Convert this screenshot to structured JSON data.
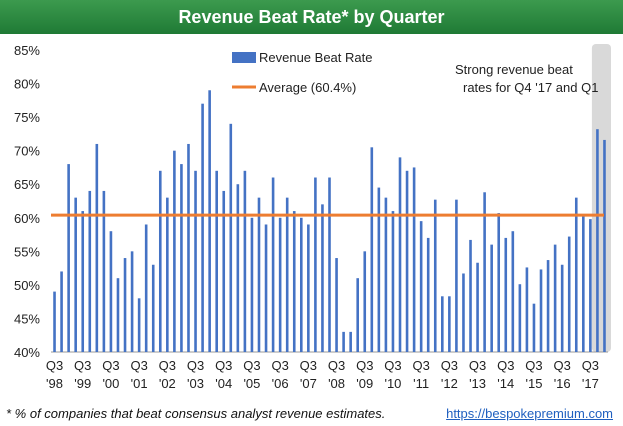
{
  "header": {
    "title": "Revenue Beat Rate* by Quarter"
  },
  "footer": {
    "footnote": "* % of companies that beat consensus analyst revenue estimates.",
    "website": "https://bespokepremium.com"
  },
  "colors": {
    "title_bg": "#2a8a3e",
    "bars": "#4472c4",
    "average_line": "#ed7d31",
    "highlight": "#d9d9d9"
  },
  "chart_data": {
    "type": "bar",
    "y_ticks": [
      "40%",
      "45%",
      "50%",
      "55%",
      "60%",
      "65%",
      "70%",
      "75%",
      "80%",
      "85%"
    ],
    "ylim": [
      40,
      85
    ],
    "grid": false,
    "legend_position": "top-center",
    "x_tick_labels": [
      {
        "q": "Q3",
        "y": "'98"
      },
      {
        "q": "Q3",
        "y": "'99"
      },
      {
        "q": "Q3",
        "y": "'00"
      },
      {
        "q": "Q3",
        "y": "'01"
      },
      {
        "q": "Q3",
        "y": "'02"
      },
      {
        "q": "Q3",
        "y": "'03"
      },
      {
        "q": "Q3",
        "y": "'04"
      },
      {
        "q": "Q3",
        "y": "'05"
      },
      {
        "q": "Q3",
        "y": "'06"
      },
      {
        "q": "Q3",
        "y": "'07"
      },
      {
        "q": "Q3",
        "y": "'08"
      },
      {
        "q": "Q3",
        "y": "'09"
      },
      {
        "q": "Q3",
        "y": "'10"
      },
      {
        "q": "Q3",
        "y": "'11"
      },
      {
        "q": "Q3",
        "y": "'12"
      },
      {
        "q": "Q3",
        "y": "'13"
      },
      {
        "q": "Q3",
        "y": "'14"
      },
      {
        "q": "Q3",
        "y": "'15"
      },
      {
        "q": "Q3",
        "y": "'16"
      },
      {
        "q": "Q3",
        "y": "'17"
      }
    ],
    "series": [
      {
        "name": "Revenue Beat Rate",
        "values": [
          49,
          52,
          68,
          63,
          61,
          64,
          71,
          64,
          58,
          51,
          54,
          55,
          48,
          59,
          53,
          67,
          63,
          70,
          68,
          71,
          67,
          77,
          79,
          67,
          64,
          74,
          65,
          67,
          60,
          63,
          59,
          66,
          60,
          63,
          61,
          60,
          59,
          66,
          62,
          66,
          54,
          43,
          43,
          51,
          55,
          70.5,
          64.5,
          63,
          61,
          69,
          67,
          67.5,
          59.5,
          57,
          62.7,
          48.3,
          48.3,
          62.7,
          51.7,
          56.7,
          53.3,
          63.8,
          56,
          60.7,
          57,
          58,
          50.1,
          52.6,
          47.2,
          52.3,
          53.7,
          56,
          53,
          57.2,
          63,
          60.4,
          59.8,
          73.2,
          71.6
        ]
      }
    ],
    "average": {
      "name": "Average (60.4%)",
      "value": 60.4
    },
    "annotation": "Strong revenue beat rates for Q4 '17 and Q1"
  }
}
